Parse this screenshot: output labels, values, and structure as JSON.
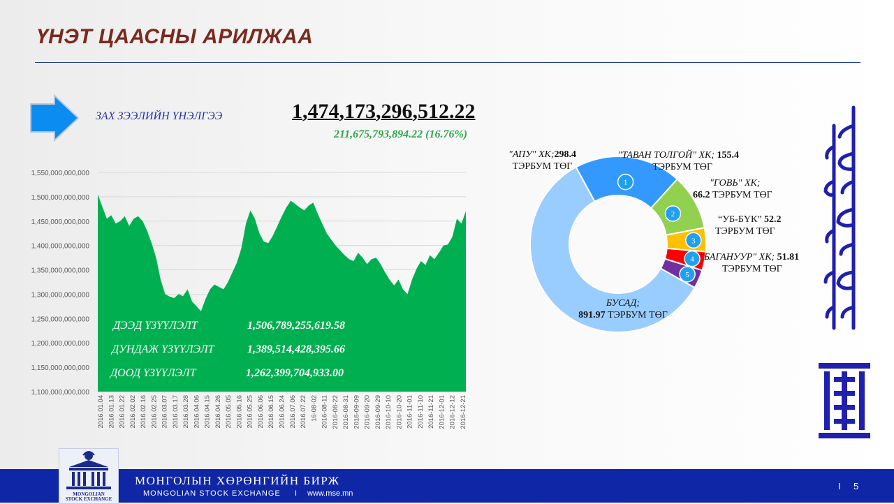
{
  "slide": {
    "title": "ҮНЭТ ЦААСНЫ АРИЛЖАА",
    "page_number": "5",
    "page_separator": "I"
  },
  "market_cap": {
    "label": "ЗАХ ЗЭЭЛИЙН ҮНЭЛГЭЭ",
    "value": "1,474,173,296,512.22",
    "change": "211,675,793,894.22 (16.76%)"
  },
  "stats": [
    {
      "label": "ДЭЭД ҮЗҮҮЛЭЛТ",
      "value": "1,506,789,255,619.58"
    },
    {
      "label": "ДУНДАЖ ҮЗҮҮЛЭЛТ",
      "value": "1,389,514,428,395.66"
    },
    {
      "label": "ДООД ҮЗҮҮЛЭЛТ",
      "value": "1,262,399,704,933.00"
    }
  ],
  "footer": {
    "exchange_mn": "МОНГОЛЫН ХӨРӨНГИЙН БИРЖ",
    "exchange_en": "MONGOLIAN STOCK EXCHANGE",
    "separator": "I",
    "url": "www.mse.mn",
    "logo_caption_1": "MONGOLIAN",
    "logo_caption_2": "STOCK EXCHANGE"
  },
  "chart_data": [
    {
      "type": "area",
      "color": "#00b050",
      "ylim": [
        1100000000000,
        1550000000000
      ],
      "y_ticks": [
        "1,100,000,000,000",
        "1,150,000,000,000",
        "1,200,000,000,000",
        "1,250,000,000,000",
        "1,300,000,000,000",
        "1,350,000,000,000",
        "1,400,000,000,000",
        "1,450,000,000,000",
        "1,500,000,000,000",
        "1,550,000,000,000"
      ],
      "x_tick_labels": [
        "2016.01.04",
        "2016.01.13",
        "2016.01.22",
        "2016.02.02",
        "2016.02.16",
        "2016.02.25",
        "2016.03.07",
        "2016.03.17",
        "2016.03.28",
        "2016.04.06",
        "2016.04.15",
        "2016.04.26",
        "2016.05.05",
        "2016.05.16",
        "2016.05.25",
        "2016.06.06",
        "2016.06.15",
        "2016.06.24",
        "2016.07.06",
        "2016.07.22",
        "16-08-02",
        "2016-08-11",
        "2016-08-22",
        "2016-08-31",
        "2016-09-09",
        "2016-09-20",
        "2016-09-29",
        "2016-10-10",
        "2016-10-20",
        "2016-11-01",
        "2016-11-10",
        "2016-11-21",
        "2016-12-01",
        "2016-12-12",
        "2016-12-21"
      ],
      "values": [
        1505000000000,
        1480000000000,
        1455000000000,
        1462000000000,
        1445000000000,
        1450000000000,
        1460000000000,
        1440000000000,
        1455000000000,
        1460000000000,
        1450000000000,
        1430000000000,
        1405000000000,
        1375000000000,
        1330000000000,
        1300000000000,
        1295000000000,
        1292000000000,
        1300000000000,
        1296000000000,
        1310000000000,
        1285000000000,
        1275000000000,
        1265000000000,
        1290000000000,
        1310000000000,
        1320000000000,
        1315000000000,
        1310000000000,
        1325000000000,
        1345000000000,
        1365000000000,
        1395000000000,
        1445000000000,
        1472000000000,
        1455000000000,
        1425000000000,
        1408000000000,
        1405000000000,
        1420000000000,
        1440000000000,
        1460000000000,
        1478000000000,
        1492000000000,
        1485000000000,
        1478000000000,
        1472000000000,
        1482000000000,
        1488000000000,
        1465000000000,
        1445000000000,
        1425000000000,
        1412000000000,
        1400000000000,
        1390000000000,
        1380000000000,
        1372000000000,
        1368000000000,
        1385000000000,
        1375000000000,
        1362000000000,
        1372000000000,
        1375000000000,
        1362000000000,
        1345000000000,
        1330000000000,
        1318000000000,
        1330000000000,
        1310000000000,
        1300000000000,
        1330000000000,
        1352000000000,
        1368000000000,
        1360000000000,
        1380000000000,
        1372000000000,
        1385000000000,
        1400000000000,
        1402000000000,
        1418000000000,
        1455000000000,
        1445000000000,
        1470000000000
      ]
    },
    {
      "type": "pie",
      "series": [
        {
          "num": "1",
          "name": "\"АПУ\" ХК;",
          "value": 298.4,
          "value_text": "298.4",
          "unit": "ТЭРБУМ ТӨГ",
          "color": "#3399ff"
        },
        {
          "num": "2",
          "name": "\"ТАВАН ТОЛГОЙ\" ХК;",
          "value": 155.4,
          "value_text": "155.4",
          "unit": "ТЭРБУМ ТӨГ",
          "color": "#92d050"
        },
        {
          "num": "3",
          "name": "\"ГОВЬ\" ХК;",
          "value": 66.2,
          "value_text": "66.2",
          "unit": "ТЭРБУМ ТӨГ",
          "color": "#ffc000"
        },
        {
          "num": "4",
          "name": "“УБ-БҮК”",
          "value": 52.2,
          "value_text": "52.2",
          "unit": "ТЭРБУМ ТӨГ",
          "color": "#ff0000"
        },
        {
          "num": "5",
          "name": "\"БАГАНУУР\" ХК;",
          "value": 51.81,
          "value_text": "51.81",
          "unit": "ТЭРБУМ ТӨГ",
          "color": "#7030a0"
        },
        {
          "num": "",
          "name": "БУСАД;",
          "value": 891.97,
          "value_text": "891.97",
          "unit": "ТЭРБУМ ТӨГ",
          "color": "#99ccff"
        }
      ]
    }
  ]
}
